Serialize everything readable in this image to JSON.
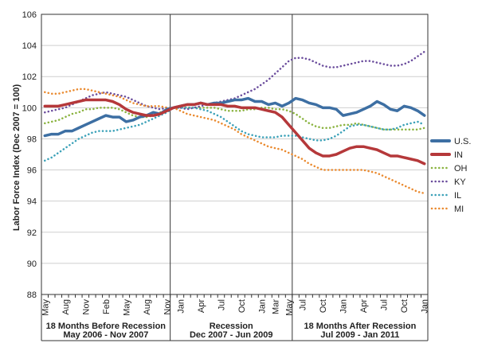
{
  "chart_data": {
    "type": "line",
    "ylabel": "Labor Force Index (Dec 2007 = 100)",
    "ylim": [
      88,
      106
    ],
    "yticks": [
      88,
      90,
      92,
      94,
      96,
      98,
      100,
      102,
      104,
      106
    ],
    "grid": "horizontal",
    "legend": "right",
    "x": [
      "May 2006",
      "Jun 2006",
      "Jul 2006",
      "Aug 2006",
      "Sep 2006",
      "Oct 2006",
      "Nov 2006",
      "Dec 2006",
      "Jan 2007",
      "Feb 2007",
      "Mar 2007",
      "Apr 2007",
      "May 2007",
      "Jun 2007",
      "Jul 2007",
      "Aug 2007",
      "Sep 2007",
      "Oct 2007",
      "Nov 2007",
      "Dec 2007",
      "Jan 2008",
      "Feb 2008",
      "Mar 2008",
      "Apr 2008",
      "May 2008",
      "Jun 2008",
      "Jul 2008",
      "Aug 2008",
      "Sep 2008",
      "Oct 2008",
      "Nov 2008",
      "Dec 2008",
      "Jan 2009",
      "Feb 2009",
      "Mar 2009",
      "Apr 2009",
      "May 2009",
      "Jun 2009",
      "Jul 2009",
      "Aug 2009",
      "Sep 2009",
      "Oct 2009",
      "Nov 2009",
      "Dec 2009",
      "Jan 2010",
      "Feb 2010",
      "Mar 2010",
      "Apr 2010",
      "May 2010",
      "Jun 2010",
      "Jul 2010",
      "Aug 2010",
      "Sep 2010",
      "Oct 2010",
      "Nov 2010",
      "Dec 2010",
      "Jan 2011"
    ],
    "tick_labels": [
      {
        "i": 0,
        "label": "May"
      },
      {
        "i": 3,
        "label": "Aug"
      },
      {
        "i": 6,
        "label": "Nov"
      },
      {
        "i": 9,
        "label": "Feb"
      },
      {
        "i": 12,
        "label": "May"
      },
      {
        "i": 15,
        "label": "Aug"
      },
      {
        "i": 18,
        "label": "Nov"
      },
      {
        "i": 20,
        "label": "Jan"
      },
      {
        "i": 23,
        "label": "Apr"
      },
      {
        "i": 26,
        "label": "Jul"
      },
      {
        "i": 29,
        "label": "Oct"
      },
      {
        "i": 32,
        "label": "Jan"
      },
      {
        "i": 34,
        "label": "Mar"
      },
      {
        "i": 36,
        "label": "May"
      },
      {
        "i": 38,
        "label": "Jul"
      },
      {
        "i": 41,
        "label": "Oct"
      },
      {
        "i": 44,
        "label": "Jan"
      },
      {
        "i": 47,
        "label": "Apr"
      },
      {
        "i": 50,
        "label": "Jul"
      },
      {
        "i": 53,
        "label": "Oct"
      },
      {
        "i": 56,
        "label": "Jan"
      }
    ],
    "periods": [
      {
        "start": 0,
        "end": 19,
        "title": "18 Months Before Recession",
        "range": "May 2006 - Nov 2007"
      },
      {
        "start": 19,
        "end": 37,
        "title": "Recession",
        "range": "Dec 2007 - Jun 2009"
      },
      {
        "start": 37,
        "end": 57,
        "title": "18 Months After Recession",
        "range": "Jul 2009 - Jan 2011"
      }
    ],
    "series": [
      {
        "name": "U.S.",
        "color": "#3d6fa3",
        "style": "solid",
        "width": 3.5,
        "values": [
          98.2,
          98.3,
          98.3,
          98.5,
          98.5,
          98.7,
          98.9,
          99.1,
          99.3,
          99.5,
          99.4,
          99.4,
          99.1,
          99.2,
          99.4,
          99.5,
          99.7,
          99.6,
          99.9,
          100.0,
          100.1,
          100.2,
          100.2,
          100.3,
          100.2,
          100.3,
          100.3,
          100.4,
          100.5,
          100.5,
          100.6,
          100.4,
          100.4,
          100.2,
          100.3,
          100.1,
          100.3,
          100.6,
          100.5,
          100.3,
          100.2,
          100.0,
          100.0,
          99.9,
          99.5,
          99.6,
          99.7,
          99.9,
          100.1,
          100.4,
          100.2,
          99.9,
          99.8,
          100.1,
          100.0,
          99.8,
          99.5
        ]
      },
      {
        "name": "IN",
        "color": "#b5383a",
        "style": "solid",
        "width": 3.5,
        "values": [
          100.1,
          100.1,
          100.1,
          100.2,
          100.3,
          100.4,
          100.5,
          100.5,
          100.5,
          100.5,
          100.4,
          100.2,
          99.9,
          99.7,
          99.6,
          99.5,
          99.5,
          99.6,
          99.8,
          100.0,
          100.1,
          100.2,
          100.2,
          100.3,
          100.2,
          100.2,
          100.2,
          100.1,
          100.1,
          100.0,
          100.0,
          100.0,
          99.9,
          99.8,
          99.7,
          99.4,
          98.9,
          98.4,
          97.9,
          97.4,
          97.1,
          96.9,
          96.9,
          97.0,
          97.2,
          97.4,
          97.5,
          97.5,
          97.4,
          97.3,
          97.1,
          96.9,
          96.9,
          96.8,
          96.7,
          96.6,
          96.4
        ]
      },
      {
        "name": "OH",
        "color": "#8ab33f",
        "style": "dotted",
        "width": 2.5,
        "values": [
          99.0,
          99.1,
          99.2,
          99.4,
          99.6,
          99.7,
          99.9,
          99.9,
          100.0,
          100.0,
          100.0,
          99.9,
          99.7,
          99.5,
          99.4,
          99.4,
          99.5,
          99.7,
          99.8,
          100.0,
          100.0,
          100.0,
          100.0,
          100.0,
          100.0,
          100.0,
          99.9,
          99.8,
          99.8,
          99.8,
          99.9,
          99.9,
          100.0,
          100.0,
          99.9,
          99.9,
          99.8,
          99.6,
          99.3,
          99.0,
          98.8,
          98.7,
          98.7,
          98.8,
          98.9,
          98.9,
          99.0,
          98.9,
          98.8,
          98.7,
          98.6,
          98.6,
          98.6,
          98.6,
          98.6,
          98.6,
          98.7
        ]
      },
      {
        "name": "KY",
        "color": "#6a4c9c",
        "style": "dotted",
        "width": 2.5,
        "values": [
          99.7,
          99.8,
          99.9,
          100.0,
          100.2,
          100.4,
          100.6,
          100.8,
          100.9,
          101.0,
          100.9,
          100.8,
          100.7,
          100.5,
          100.3,
          100.1,
          100.0,
          99.9,
          100.0,
          100.0,
          100.0,
          99.9,
          100.0,
          100.1,
          100.2,
          100.3,
          100.4,
          100.5,
          100.6,
          100.8,
          101.0,
          101.2,
          101.5,
          101.8,
          102.2,
          102.6,
          103.0,
          103.2,
          103.2,
          103.1,
          102.9,
          102.7,
          102.6,
          102.6,
          102.7,
          102.8,
          102.9,
          103.0,
          103.0,
          102.9,
          102.8,
          102.7,
          102.7,
          102.8,
          103.0,
          103.3,
          103.6
        ]
      },
      {
        "name": "IL",
        "color": "#3ba1b8",
        "style": "dotted",
        "width": 2.5,
        "values": [
          96.6,
          96.8,
          97.1,
          97.4,
          97.7,
          98.0,
          98.2,
          98.4,
          98.5,
          98.5,
          98.5,
          98.6,
          98.7,
          98.8,
          98.9,
          99.1,
          99.3,
          99.5,
          99.7,
          100.0,
          100.0,
          100.0,
          100.0,
          99.9,
          99.8,
          99.6,
          99.4,
          99.1,
          98.8,
          98.5,
          98.3,
          98.2,
          98.1,
          98.1,
          98.1,
          98.2,
          98.2,
          98.2,
          98.1,
          98.0,
          97.9,
          97.9,
          98.0,
          98.2,
          98.5,
          98.8,
          98.9,
          98.9,
          98.8,
          98.7,
          98.6,
          98.6,
          98.7,
          98.9,
          99.0,
          99.1,
          98.9
        ]
      },
      {
        "name": "MI",
        "color": "#ea8a2f",
        "style": "dotted",
        "width": 2.5,
        "values": [
          101.0,
          100.9,
          100.9,
          101.0,
          101.1,
          101.2,
          101.2,
          101.1,
          101.0,
          100.9,
          100.8,
          100.7,
          100.5,
          100.3,
          100.2,
          100.1,
          100.1,
          100.1,
          100.0,
          100.0,
          99.8,
          99.6,
          99.5,
          99.4,
          99.3,
          99.2,
          99.0,
          98.8,
          98.6,
          98.3,
          98.1,
          97.9,
          97.7,
          97.5,
          97.4,
          97.3,
          97.1,
          96.9,
          96.7,
          96.4,
          96.2,
          96.0,
          96.0,
          96.0,
          96.0,
          96.0,
          96.0,
          96.0,
          95.9,
          95.8,
          95.6,
          95.4,
          95.2,
          95.0,
          94.8,
          94.6,
          94.5
        ]
      }
    ]
  }
}
